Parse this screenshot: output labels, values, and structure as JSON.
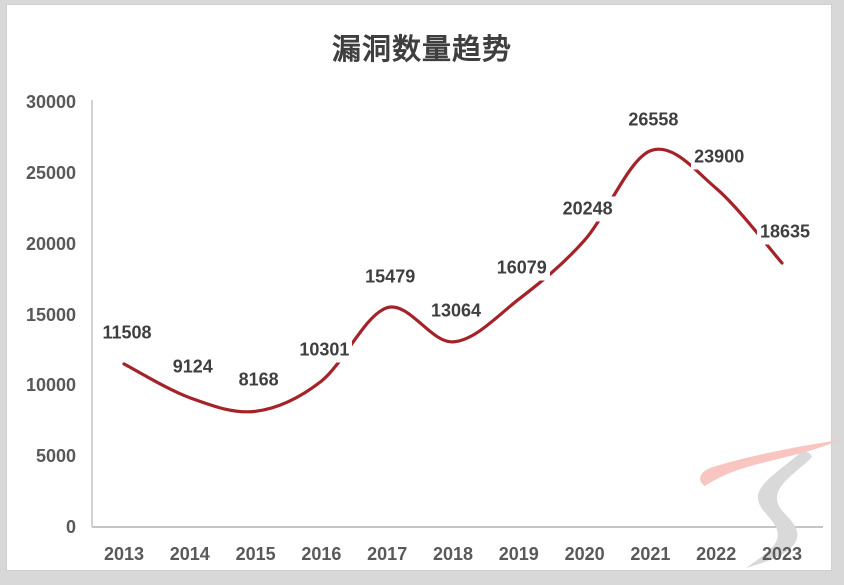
{
  "title": "漏洞数量趋势",
  "chart_data": {
    "type": "line",
    "title": "漏洞数量趋势",
    "categories": [
      "2013",
      "2014",
      "2015",
      "2016",
      "2017",
      "2018",
      "2019",
      "2020",
      "2021",
      "2022",
      "2023"
    ],
    "values": [
      11508,
      9124,
      8168,
      10301,
      15479,
      13064,
      16079,
      20248,
      26558,
      23900,
      18635
    ],
    "data_labels": [
      "11508",
      "9124",
      "8168",
      "10301",
      "15479",
      "13064",
      "16079",
      "20248",
      "26558",
      "23900",
      "18635"
    ],
    "xlabel": "",
    "ylabel": "",
    "ylim": [
      0,
      30000
    ],
    "y_ticks": [
      0,
      5000,
      10000,
      15000,
      20000,
      25000,
      30000
    ],
    "grid": false,
    "legend_position": "none",
    "smooth": true,
    "colors": {
      "line": "#a42329",
      "data_label": "#3f3f3f",
      "axis_label": "#595959",
      "title": "#3f3f3f",
      "axis_line": "#c2c2c2"
    }
  },
  "watermark": {
    "icon": "brush-stroke-logo",
    "colors": {
      "pink": "#f9c5c0",
      "gray": "#d9d9d9"
    }
  }
}
